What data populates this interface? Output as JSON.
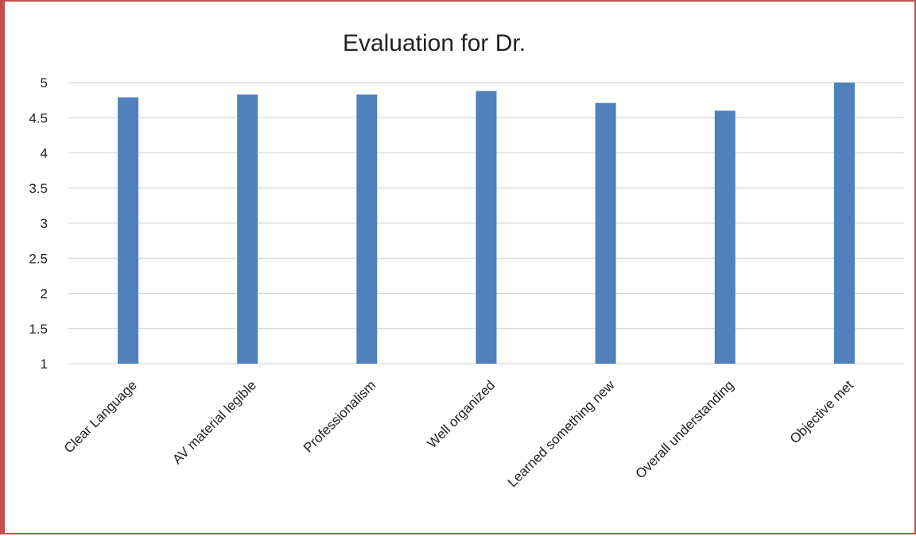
{
  "chart_data": {
    "type": "bar",
    "title": "Evaluation for Dr.",
    "xlabel": "",
    "ylabel": "",
    "categories": [
      "Clear Language",
      "AV material legible",
      "Professionalism",
      "Well organized",
      "Learned something new",
      "Overall understanding",
      "Objective met"
    ],
    "values": [
      4.79,
      4.83,
      4.83,
      4.88,
      4.71,
      4.6,
      5.0
    ],
    "ylim": [
      1,
      5
    ],
    "yticks": [
      "1",
      "1.5",
      "2",
      "2.5",
      "3",
      "3.5",
      "4",
      "4.5",
      "5"
    ],
    "grid": true,
    "legend": "none",
    "bar_color": "#4f81bd",
    "grid_color": "#d9d9d9",
    "frame_color": "#c0504d"
  }
}
